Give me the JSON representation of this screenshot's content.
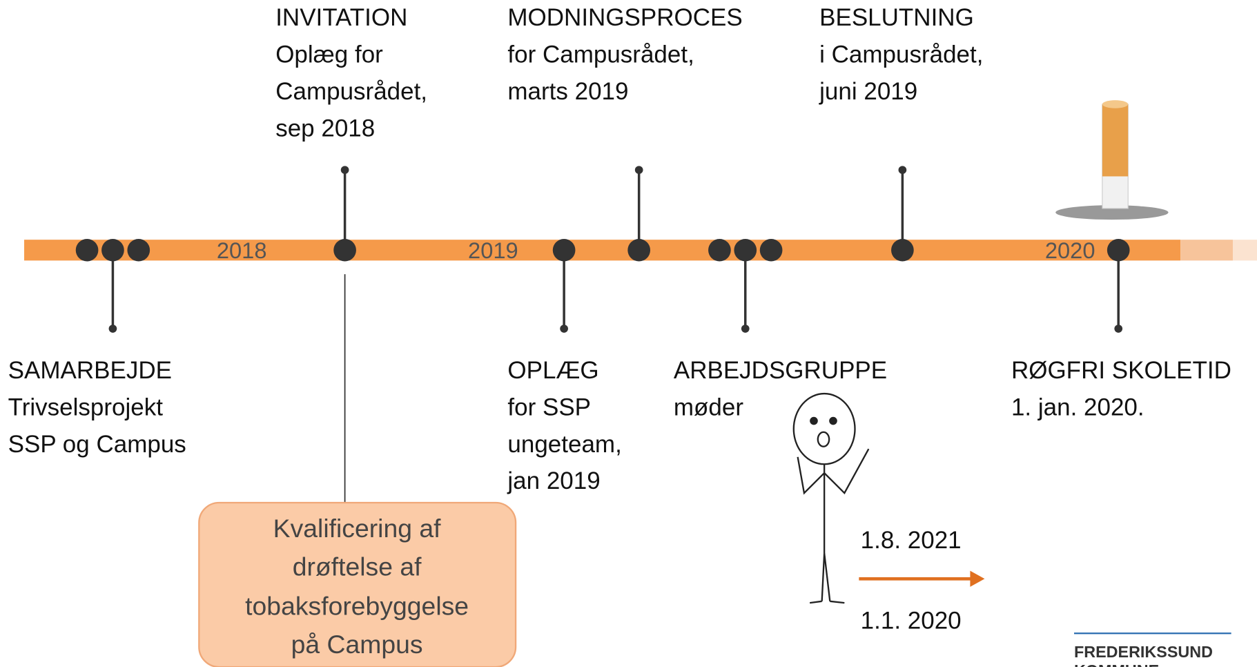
{
  "timeline": {
    "years": [
      "2018",
      "2019",
      "2020"
    ]
  },
  "events": [
    {
      "title": "INVITATION",
      "lines": [
        "Oplæg for",
        "Campusrådet,",
        "sep 2018"
      ]
    },
    {
      "title": "MODNINGSPROCES",
      "lines": [
        "for Campusrådet,",
        "marts 2019"
      ]
    },
    {
      "title": "BESLUTNING",
      "lines": [
        "i Campusrådet,",
        "juni 2019"
      ]
    },
    {
      "title": "SAMARBEJDE",
      "lines": [
        "Trivselsprojekt",
        "SSP og Campus"
      ]
    },
    {
      "title": "OPLÆG",
      "lines": [
        "for SSP",
        "ungeteam,",
        "jan 2019"
      ]
    },
    {
      "title": "ARBEJDSGRUPPE",
      "lines": [
        "møder"
      ]
    },
    {
      "title": "RØGFRI SKOLETID",
      "lines": [
        "1. jan. 2020."
      ]
    }
  ],
  "note": {
    "lines": [
      "Kvalificering af",
      "drøftelse af",
      "tobaksforebyggelse",
      "på Campus"
    ]
  },
  "change": {
    "new_date": "1.8. 2021",
    "old_date": "1.1. 2020"
  },
  "logo": {
    "lines": [
      "FREDERIKSSUND",
      "KOMMUNE"
    ]
  }
}
